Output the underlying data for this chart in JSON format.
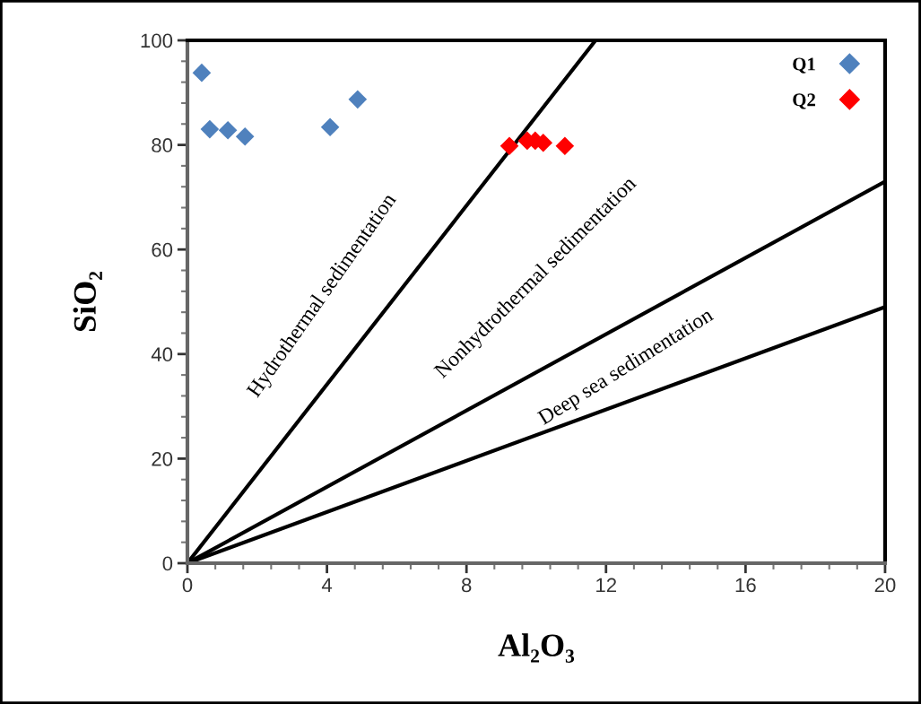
{
  "chart_data": {
    "type": "scatter",
    "xlabel": "Al₂O₃",
    "ylabel": "SiO₂",
    "xlim": [
      0,
      20
    ],
    "ylim": [
      0,
      100
    ],
    "xticks": [
      0,
      4,
      8,
      12,
      16,
      20
    ],
    "yticks": [
      0,
      20,
      40,
      60,
      80,
      100
    ],
    "grid": false,
    "legend": "top right",
    "marker": "diamond",
    "series": [
      {
        "name": "Q1",
        "color": "#4f81bd",
        "x": [
          0.41,
          0.64,
          1.16,
          1.65,
          4.09,
          4.88
        ],
        "values": [
          93.8,
          83.0,
          82.8,
          81.6,
          83.4,
          88.7
        ]
      },
      {
        "name": "Q2",
        "color": "#ff0000",
        "x": [
          9.23,
          9.74,
          9.97,
          10.2,
          10.82
        ],
        "values": [
          79.8,
          80.8,
          80.8,
          80.4,
          79.8
        ]
      },
      {
        "type": "line",
        "color": "#000000",
        "marker": "none",
        "x": [
          0,
          11.7
        ],
        "values": [
          0,
          100
        ]
      },
      {
        "type": "line",
        "color": "#000000",
        "marker": "none",
        "x": [
          0,
          20
        ],
        "values": [
          0,
          73
        ]
      },
      {
        "type": "line",
        "color": "#000000",
        "marker": "none",
        "x": [
          0,
          20
        ],
        "values": [
          0,
          49
        ]
      }
    ],
    "annotations": [
      "Hydrothermal sedimentation",
      "Nonhydrothermal sedimentation",
      "Deep sea sedimentation"
    ]
  }
}
